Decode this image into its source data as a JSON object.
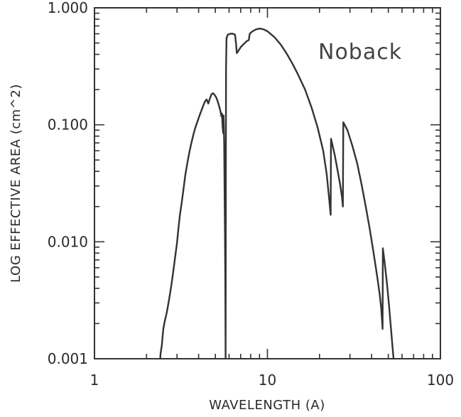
{
  "chart_data": {
    "type": "line",
    "title": "",
    "xlabel": "WAVELENGTH (A)",
    "ylabel": "LOG EFFECTIVE AREA (cm^2)",
    "annotation": "Noback",
    "xscale": "log",
    "yscale": "log",
    "xlim": [
      1,
      100
    ],
    "ylim": [
      0.001,
      1.0
    ],
    "grid": false,
    "x_ticks": [
      {
        "value": 1,
        "label": "1"
      },
      {
        "value": 10,
        "label": "10"
      },
      {
        "value": 100,
        "label": "100"
      }
    ],
    "y_ticks": [
      {
        "value": 0.001,
        "label": "0.001"
      },
      {
        "value": 0.01,
        "label": "0.010"
      },
      {
        "value": 0.1,
        "label": "0.100"
      },
      {
        "value": 1.0,
        "label": "1.000"
      }
    ],
    "series": [
      {
        "color": "#333333",
        "points": [
          [
            2.4,
            0.001
          ],
          [
            2.41,
            0.0011
          ],
          [
            2.45,
            0.0013
          ],
          [
            2.5,
            0.0018
          ],
          [
            2.55,
            0.0021
          ],
          [
            2.62,
            0.0025
          ],
          [
            2.7,
            0.0032
          ],
          [
            2.78,
            0.0042
          ],
          [
            2.85,
            0.0055
          ],
          [
            2.92,
            0.0072
          ],
          [
            3.0,
            0.0098
          ],
          [
            3.05,
            0.0125
          ],
          [
            3.12,
            0.017
          ],
          [
            3.2,
            0.022
          ],
          [
            3.28,
            0.029
          ],
          [
            3.35,
            0.037
          ],
          [
            3.45,
            0.048
          ],
          [
            3.55,
            0.06
          ],
          [
            3.65,
            0.072
          ],
          [
            3.75,
            0.085
          ],
          [
            3.85,
            0.097
          ],
          [
            3.95,
            0.108
          ],
          [
            4.05,
            0.12
          ],
          [
            4.15,
            0.132
          ],
          [
            4.25,
            0.145
          ],
          [
            4.35,
            0.158
          ],
          [
            4.45,
            0.165
          ],
          [
            4.55,
            0.152
          ],
          [
            4.65,
            0.168
          ],
          [
            4.75,
            0.183
          ],
          [
            4.85,
            0.186
          ],
          [
            4.95,
            0.18
          ],
          [
            5.05,
            0.172
          ],
          [
            5.15,
            0.16
          ],
          [
            5.25,
            0.145
          ],
          [
            5.35,
            0.13
          ],
          [
            5.42,
            0.118
          ],
          [
            5.46,
            0.125
          ],
          [
            5.5,
            0.098
          ],
          [
            5.55,
            0.085
          ],
          [
            5.58,
            0.12
          ],
          [
            5.62,
            0.07
          ],
          [
            5.65,
            0.03
          ],
          [
            5.68,
            0.012
          ],
          [
            5.71,
            0.0045
          ],
          [
            5.73,
            0.001
          ],
          [
            5.76,
            0.3
          ],
          [
            5.8,
            0.55
          ],
          [
            5.9,
            0.59
          ],
          [
            6.1,
            0.6
          ],
          [
            6.3,
            0.6
          ],
          [
            6.5,
            0.59
          ],
          [
            6.58,
            0.5
          ],
          [
            6.65,
            0.41
          ],
          [
            6.8,
            0.43
          ],
          [
            7.0,
            0.46
          ],
          [
            7.3,
            0.49
          ],
          [
            7.6,
            0.52
          ],
          [
            7.8,
            0.53
          ],
          [
            7.9,
            0.6
          ],
          [
            8.2,
            0.63
          ],
          [
            8.6,
            0.655
          ],
          [
            9.0,
            0.665
          ],
          [
            9.5,
            0.655
          ],
          [
            10.0,
            0.63
          ],
          [
            11.0,
            0.56
          ],
          [
            12.0,
            0.48
          ],
          [
            13.0,
            0.4
          ],
          [
            14.0,
            0.33
          ],
          [
            15.0,
            0.27
          ],
          [
            16.5,
            0.2
          ],
          [
            18.0,
            0.14
          ],
          [
            19.5,
            0.095
          ],
          [
            21.0,
            0.06
          ],
          [
            22.0,
            0.038
          ],
          [
            22.7,
            0.024
          ],
          [
            23.2,
            0.017
          ],
          [
            23.3,
            0.076
          ],
          [
            24.5,
            0.055
          ],
          [
            25.5,
            0.04
          ],
          [
            26.3,
            0.031
          ],
          [
            27.0,
            0.024
          ],
          [
            27.3,
            0.02
          ],
          [
            27.45,
            0.105
          ],
          [
            29.0,
            0.09
          ],
          [
            31.0,
            0.066
          ],
          [
            33.0,
            0.047
          ],
          [
            35.0,
            0.031
          ],
          [
            37.0,
            0.02
          ],
          [
            39.0,
            0.013
          ],
          [
            41.0,
            0.0082
          ],
          [
            43.0,
            0.0052
          ],
          [
            44.5,
            0.0036
          ],
          [
            45.5,
            0.0027
          ],
          [
            46.3,
            0.0018
          ],
          [
            46.5,
            0.0088
          ],
          [
            47.5,
            0.0068
          ],
          [
            49.0,
            0.0045
          ],
          [
            50.5,
            0.0028
          ],
          [
            52.0,
            0.0017
          ],
          [
            53.0,
            0.0012
          ],
          [
            53.6,
            0.001
          ]
        ]
      }
    ]
  }
}
